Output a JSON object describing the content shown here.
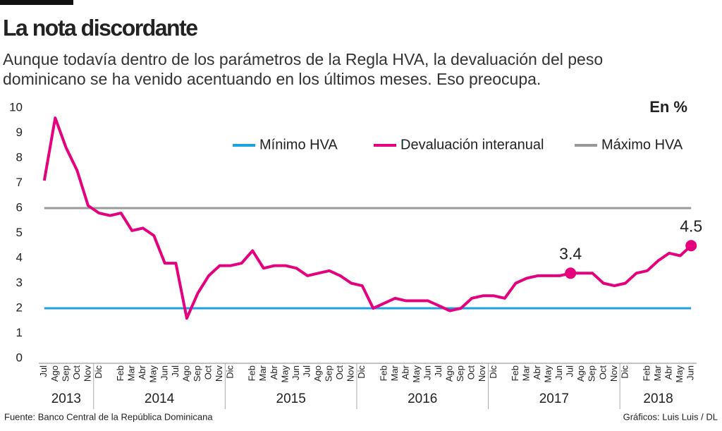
{
  "chart_data": {
    "type": "line",
    "title": "La nota discordante",
    "subtitle": [
      "Aunque todavía dentro de los parámetros de la Regla HVA, la devaluación del peso",
      "dominicano se ha venido acentuando en los últimos meses. Eso preocupa."
    ],
    "unit_label": "En %",
    "categories": [
      "Jul",
      "Ago",
      "Sep",
      "Oct",
      "Nov",
      "Dic",
      null,
      "Feb",
      "Mar",
      "Abr",
      "May",
      "Jun",
      "Jul",
      "Ago",
      "Sep",
      "Oct",
      "Nov",
      "Dic",
      null,
      "Feb",
      "Mar",
      "Abr",
      "May",
      "Jun",
      "Jul",
      "Ago",
      "Sep",
      "Oct",
      "Nov",
      "Dic",
      null,
      "Feb",
      "Mar",
      "Abr",
      "May",
      "Jun",
      "Jul",
      "Ago",
      "Sep",
      "Oct",
      "Nov",
      "Dic",
      null,
      "Feb",
      "Mar",
      "Abr",
      "May",
      "Jun",
      "Jul",
      "Ago",
      "Sep",
      "Oct",
      "Nov",
      "Dic",
      null,
      "Feb",
      "Mar",
      "Abr",
      "May",
      "Jun"
    ],
    "years": [
      "2013",
      "2014",
      "2015",
      "2016",
      "2017",
      "2018"
    ],
    "series": [
      {
        "name": "Mínimo HVA",
        "color": "#1aa3e0",
        "values": [
          2,
          2,
          2,
          2,
          2,
          2,
          2,
          2,
          2,
          2,
          2,
          2,
          2,
          2,
          2,
          2,
          2,
          2,
          2,
          2,
          2,
          2,
          2,
          2,
          2,
          2,
          2,
          2,
          2,
          2,
          2,
          2,
          2,
          2,
          2,
          2,
          2,
          2,
          2,
          2,
          2,
          2,
          2,
          2,
          2,
          2,
          2,
          2,
          2,
          2,
          2,
          2,
          2,
          2,
          2,
          2,
          2,
          2,
          2,
          2
        ]
      },
      {
        "name": "Devaluación interanual",
        "color": "#e5007e",
        "values": [
          7.1,
          9.6,
          8.4,
          7.5,
          6.1,
          5.8,
          5.7,
          5.8,
          5.1,
          5.2,
          4.9,
          3.8,
          3.8,
          1.6,
          2.6,
          3.3,
          3.7,
          3.7,
          3.8,
          4.3,
          3.6,
          3.7,
          3.7,
          3.6,
          3.3,
          3.4,
          3.5,
          3.3,
          3.0,
          2.9,
          2.0,
          2.2,
          2.4,
          2.3,
          2.3,
          2.3,
          2.1,
          1.9,
          2.0,
          2.4,
          2.5,
          2.5,
          2.4,
          3.0,
          3.2,
          3.3,
          3.3,
          3.3,
          3.4,
          3.4,
          3.4,
          3.0,
          2.9,
          3.0,
          3.4,
          3.5,
          3.9,
          4.2,
          4.1,
          4.5
        ],
        "value_labels": [
          null,
          null,
          null,
          null,
          null,
          null,
          null,
          null,
          null,
          null,
          null,
          null,
          null,
          null,
          null,
          null,
          null,
          null,
          null,
          null,
          null,
          null,
          null,
          null,
          null,
          null,
          null,
          null,
          null,
          null,
          null,
          null,
          null,
          null,
          null,
          null,
          null,
          null,
          null,
          null,
          null,
          null,
          null,
          null,
          null,
          null,
          null,
          null,
          "3.4",
          null,
          null,
          null,
          null,
          null,
          null,
          null,
          null,
          null,
          null,
          "4.5"
        ]
      },
      {
        "name": "Máximo HVA",
        "color": "#999999",
        "values": [
          6,
          6,
          6,
          6,
          6,
          6,
          6,
          6,
          6,
          6,
          6,
          6,
          6,
          6,
          6,
          6,
          6,
          6,
          6,
          6,
          6,
          6,
          6,
          6,
          6,
          6,
          6,
          6,
          6,
          6,
          6,
          6,
          6,
          6,
          6,
          6,
          6,
          6,
          6,
          6,
          6,
          6,
          6,
          6,
          6,
          6,
          6,
          6,
          6,
          6,
          6,
          6,
          6,
          6,
          6,
          6,
          6,
          6,
          6,
          6
        ]
      }
    ],
    "ylim": [
      0,
      10
    ],
    "yticks": [
      0,
      1,
      2,
      3,
      4,
      5,
      6,
      7,
      8,
      9,
      10
    ],
    "source": "Fuente: Banco Central de la República Dominicana",
    "credit": "Gráficos: Luis Luis / DL"
  }
}
